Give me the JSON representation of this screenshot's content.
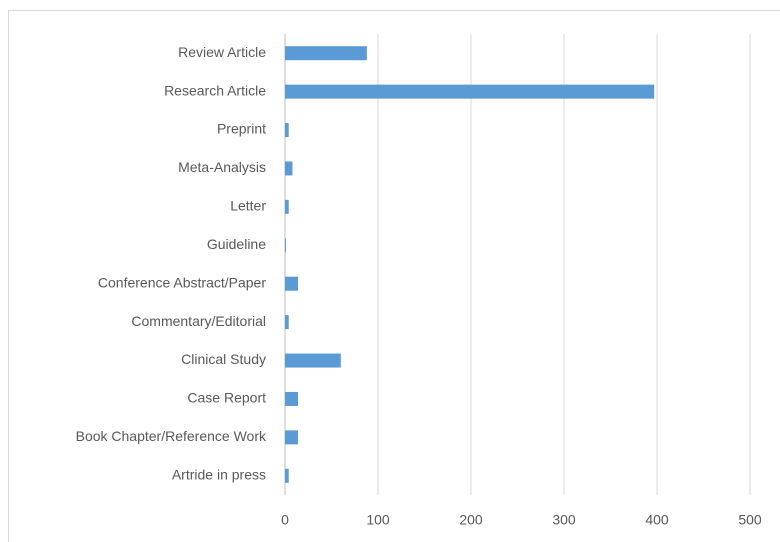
{
  "chart_data": {
    "type": "barh",
    "categories": [
      "Review Article",
      "Research Article",
      "Preprint",
      "Meta-Analysis",
      "Letter",
      "Guideline",
      "Conference Abstract/Paper",
      "Commentary/Editorial",
      "Clinical Study",
      "Case Report",
      "Book Chapter/Reference Work",
      "Artride in press"
    ],
    "values": [
      88,
      397,
      4,
      8,
      4,
      1,
      14,
      4,
      60,
      14,
      14,
      4
    ],
    "color": "#5b9bd5",
    "xlim": [
      0,
      500
    ],
    "xticks": [
      0,
      100,
      200,
      300,
      400,
      500
    ],
    "grid": true
  }
}
